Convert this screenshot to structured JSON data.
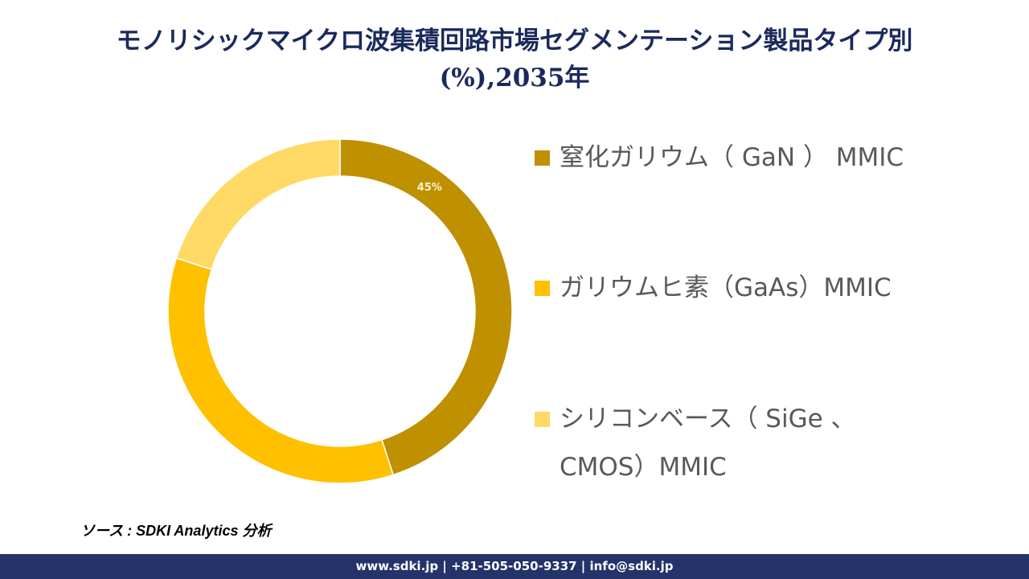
{
  "title": {
    "line1": "モノリシックマイクロ波集積回路市場セグメンテーション製品タイプ別",
    "line2": "(%),2035年"
  },
  "chart_data": {
    "type": "pie",
    "variant": "donut",
    "title": "モノリシックマイクロ波集積回路市場セグメンテーション製品タイプ別 (%),2035年",
    "categories": [
      "窒化ガリウム（ GaN ） MMIC",
      "ガリウムヒ素（GaAs）MMIC",
      "シリコンベース（ SiGe 、 CMOS）MMIC"
    ],
    "values": [
      45,
      35,
      20
    ],
    "colors": [
      "#bf9000",
      "#ffc000",
      "#ffd966"
    ],
    "data_labels": [
      "45%",
      "",
      ""
    ],
    "start_angle_deg": 0,
    "direction": "clockwise",
    "legend_position": "right"
  },
  "legend": {
    "items": [
      {
        "label": "窒化ガリウム（ GaN ） MMIC",
        "color": "#bf9000"
      },
      {
        "label": "ガリウムヒ素（GaAs）MMIC",
        "color": "#ffc000"
      },
      {
        "label_line1": "シリコンベース（ SiGe 、",
        "label_line2": "CMOS）MMIC",
        "color": "#ffd966"
      }
    ]
  },
  "source": "ソース : SDKI Analytics 分析",
  "footer": "www.sdki.jp | +81-505-050-9337 | info@sdki.jp"
}
